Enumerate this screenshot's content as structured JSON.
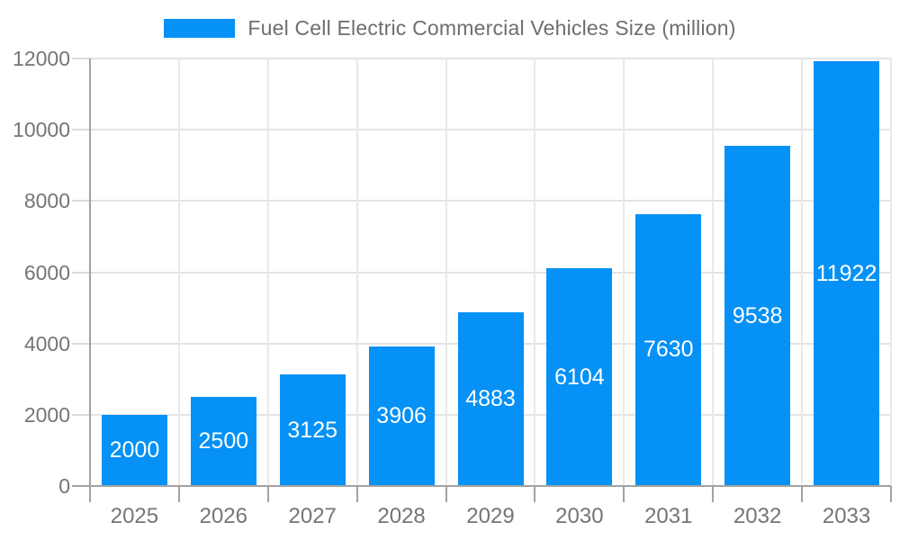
{
  "legend": {
    "label": "Fuel Cell Electric Commercial Vehicles Size (million)"
  },
  "chart_data": {
    "type": "bar",
    "title": "",
    "categories": [
      "2025",
      "2026",
      "2027",
      "2028",
      "2029",
      "2030",
      "2031",
      "2032",
      "2033"
    ],
    "values": [
      2000,
      2500,
      3125,
      3906,
      4883,
      6104,
      7630,
      9538,
      11922
    ],
    "series_name": "Fuel Cell Electric Commercial Vehicles Size (million)",
    "xlabel": "",
    "ylabel": "",
    "ylim": [
      0,
      12000
    ],
    "yticks": [
      0,
      2000,
      4000,
      6000,
      8000,
      10000,
      12000
    ],
    "grid": true,
    "legend_position": "top-center",
    "bar_color": "#0591f5",
    "value_label_position": "inside-center",
    "value_label_color": "#ffffff",
    "axis_text_color": "#757575"
  }
}
